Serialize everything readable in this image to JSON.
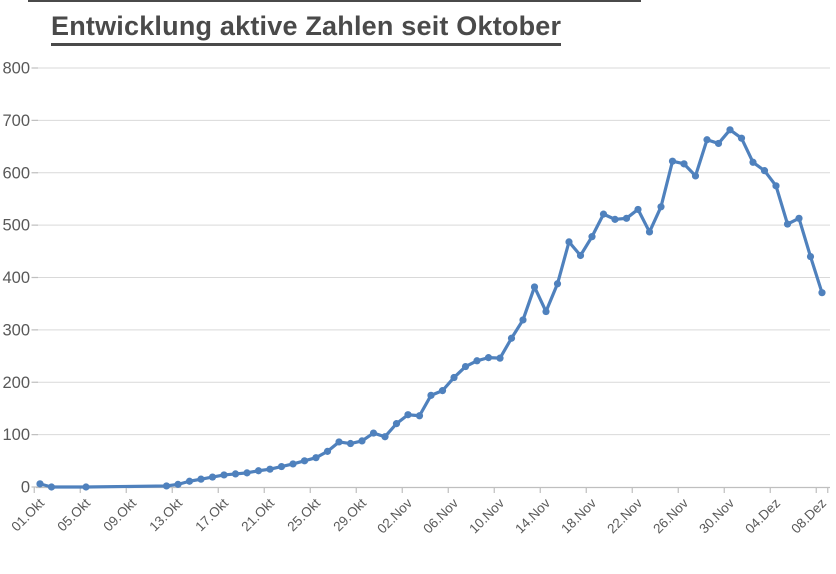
{
  "page": {
    "background": "#ffffff",
    "top_rule_color": "#4a4a4a"
  },
  "title": {
    "text": "Entwicklung aktive Zahlen seit Oktober",
    "color": "#4a4a4a",
    "underlined": true
  },
  "chart_data": {
    "type": "line",
    "title": "Entwicklung aktive Zahlen seit Oktober",
    "series_color": "#4F81BD",
    "grid_color": "#D9D9D9",
    "axis_color": "#BFBFBF",
    "label_color": "#595959",
    "ylim": [
      0,
      800
    ],
    "y_ticks": [
      0,
      100,
      200,
      300,
      400,
      500,
      600,
      700,
      800
    ],
    "x_tick_labels": [
      "01.Okt",
      "05.Okt",
      "09.Okt",
      "13.Okt",
      "17.Okt",
      "21.Okt",
      "25.Okt",
      "29.Okt",
      "02.Nov",
      "06.Nov",
      "10.Nov",
      "14.Nov",
      "18.Nov",
      "22.Nov",
      "26.Nov",
      "30.Nov",
      "04.Dez",
      "08.Dez"
    ],
    "x_tick_day_indices": [
      0,
      4,
      8,
      12,
      16,
      20,
      24,
      28,
      32,
      36,
      40,
      44,
      48,
      52,
      56,
      60,
      64,
      68
    ],
    "total_days": 69,
    "grid": true,
    "legend": "none",
    "marker": "circle",
    "points": [
      {
        "date": "01.Okt",
        "day": 0,
        "value": 6
      },
      {
        "date": "02.Okt",
        "day": 1,
        "value": 0
      },
      {
        "date": "05.Okt",
        "day": 4,
        "value": 0
      },
      {
        "date": "12.Okt",
        "day": 11,
        "value": 2
      },
      {
        "date": "13.Okt",
        "day": 12,
        "value": 5
      },
      {
        "date": "14.Okt",
        "day": 13,
        "value": 11
      },
      {
        "date": "15.Okt",
        "day": 14,
        "value": 15
      },
      {
        "date": "16.Okt",
        "day": 15,
        "value": 19
      },
      {
        "date": "17.Okt",
        "day": 16,
        "value": 23
      },
      {
        "date": "18.Okt",
        "day": 17,
        "value": 25
      },
      {
        "date": "19.Okt",
        "day": 18,
        "value": 27
      },
      {
        "date": "20.Okt",
        "day": 19,
        "value": 31
      },
      {
        "date": "21.Okt",
        "day": 20,
        "value": 34
      },
      {
        "date": "22.Okt",
        "day": 21,
        "value": 39
      },
      {
        "date": "23.Okt",
        "day": 22,
        "value": 44
      },
      {
        "date": "24.Okt",
        "day": 23,
        "value": 50
      },
      {
        "date": "25.Okt",
        "day": 24,
        "value": 56
      },
      {
        "date": "26.Okt",
        "day": 25,
        "value": 68
      },
      {
        "date": "27.Okt",
        "day": 26,
        "value": 86
      },
      {
        "date": "28.Okt",
        "day": 27,
        "value": 83
      },
      {
        "date": "29.Okt",
        "day": 28,
        "value": 88
      },
      {
        "date": "30.Okt",
        "day": 29,
        "value": 103
      },
      {
        "date": "31.Okt",
        "day": 30,
        "value": 96
      },
      {
        "date": "01.Nov",
        "day": 31,
        "value": 121
      },
      {
        "date": "02.Nov",
        "day": 32,
        "value": 138
      },
      {
        "date": "03.Nov",
        "day": 33,
        "value": 136
      },
      {
        "date": "04.Nov",
        "day": 34,
        "value": 175
      },
      {
        "date": "05.Nov",
        "day": 35,
        "value": 184
      },
      {
        "date": "06.Nov",
        "day": 36,
        "value": 209
      },
      {
        "date": "07.Nov",
        "day": 37,
        "value": 230
      },
      {
        "date": "08.Nov",
        "day": 38,
        "value": 241
      },
      {
        "date": "09.Nov",
        "day": 39,
        "value": 247
      },
      {
        "date": "10.Nov",
        "day": 40,
        "value": 246
      },
      {
        "date": "11.Nov",
        "day": 41,
        "value": 284
      },
      {
        "date": "12.Nov",
        "day": 42,
        "value": 319
      },
      {
        "date": "13.Nov",
        "day": 43,
        "value": 382
      },
      {
        "date": "14.Nov",
        "day": 44,
        "value": 335
      },
      {
        "date": "15.Nov",
        "day": 45,
        "value": 388
      },
      {
        "date": "16.Nov",
        "day": 46,
        "value": 468
      },
      {
        "date": "17.Nov",
        "day": 47,
        "value": 442
      },
      {
        "date": "18.Nov",
        "day": 48,
        "value": 478
      },
      {
        "date": "19.Nov",
        "day": 49,
        "value": 521
      },
      {
        "date": "20.Nov",
        "day": 50,
        "value": 511
      },
      {
        "date": "21.Nov",
        "day": 51,
        "value": 513
      },
      {
        "date": "22.Nov",
        "day": 52,
        "value": 530
      },
      {
        "date": "23.Nov",
        "day": 53,
        "value": 487
      },
      {
        "date": "24.Nov",
        "day": 54,
        "value": 535
      },
      {
        "date": "25.Nov",
        "day": 55,
        "value": 622
      },
      {
        "date": "26.Nov",
        "day": 56,
        "value": 617
      },
      {
        "date": "27.Nov",
        "day": 57,
        "value": 594
      },
      {
        "date": "28.Nov",
        "day": 58,
        "value": 663
      },
      {
        "date": "29.Nov",
        "day": 59,
        "value": 656
      },
      {
        "date": "30.Nov",
        "day": 60,
        "value": 682
      },
      {
        "date": "01.Dez",
        "day": 61,
        "value": 666
      },
      {
        "date": "02.Dez",
        "day": 62,
        "value": 620
      },
      {
        "date": "03.Dez",
        "day": 63,
        "value": 604
      },
      {
        "date": "04.Dez",
        "day": 64,
        "value": 575
      },
      {
        "date": "05.Dez",
        "day": 65,
        "value": 502
      },
      {
        "date": "06.Dez",
        "day": 66,
        "value": 513
      },
      {
        "date": "07.Dez",
        "day": 67,
        "value": 440
      },
      {
        "date": "08.Dez",
        "day": 68,
        "value": 371
      }
    ]
  }
}
